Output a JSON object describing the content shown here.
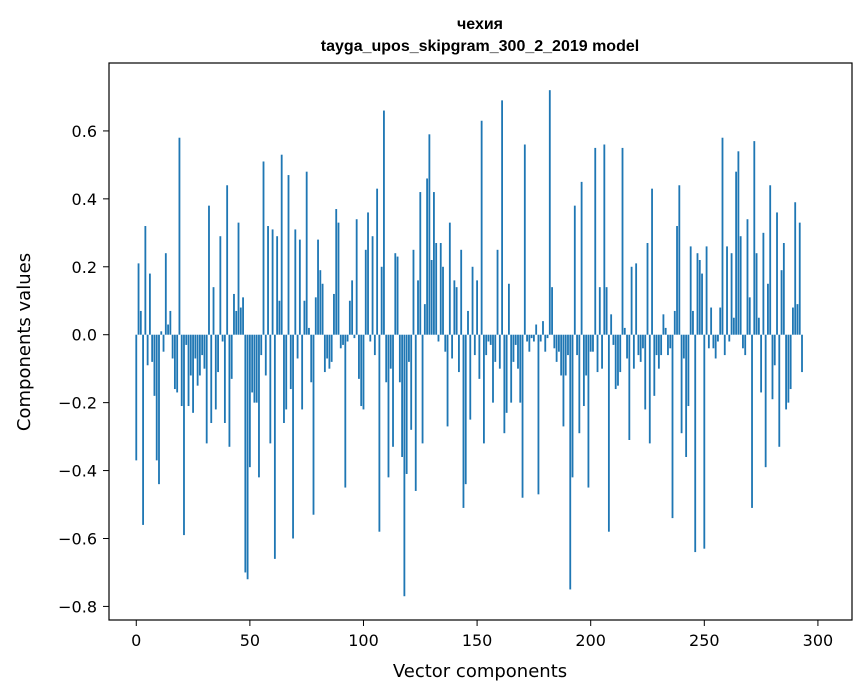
{
  "chart_data": {
    "type": "bar",
    "title": "чехия",
    "subtitle": "tayga_upos_skipgram_300_2_2019 model",
    "xlabel": "Vector components",
    "ylabel": "Components values",
    "xlim": [
      -12,
      315
    ],
    "ylim": [
      -0.84,
      0.8
    ],
    "x_ticks": [
      0,
      50,
      100,
      150,
      200,
      250,
      300
    ],
    "x_tick_labels": [
      "0",
      "50",
      "100",
      "150",
      "200",
      "250",
      "300"
    ],
    "y_ticks": [
      -0.8,
      -0.6,
      -0.4,
      -0.2,
      0.0,
      0.2,
      0.4,
      0.6
    ],
    "y_tick_labels": [
      "−0.8",
      "−0.6",
      "−0.4",
      "−0.2",
      "0.0",
      "0.2",
      "0.4",
      "0.6"
    ],
    "bar_color": "#1f77b4",
    "grid": false,
    "values": [
      -0.37,
      0.21,
      0.07,
      -0.56,
      0.32,
      -0.09,
      0.18,
      -0.08,
      -0.18,
      -0.37,
      -0.44,
      0.01,
      -0.05,
      0.24,
      0.03,
      0.07,
      -0.07,
      -0.16,
      -0.17,
      0.58,
      -0.21,
      -0.59,
      -0.03,
      -0.21,
      -0.12,
      -0.23,
      -0.07,
      -0.15,
      -0.12,
      -0.06,
      -0.1,
      -0.32,
      0.38,
      -0.26,
      0.14,
      -0.22,
      -0.11,
      0.29,
      -0.02,
      -0.26,
      0.44,
      -0.33,
      -0.13,
      0.12,
      0.07,
      0.33,
      0.08,
      0.11,
      -0.7,
      -0.72,
      -0.39,
      -0.17,
      -0.2,
      -0.2,
      -0.42,
      -0.06,
      0.51,
      -0.12,
      0.32,
      -0.32,
      0.31,
      -0.66,
      0.29,
      0.1,
      0.53,
      -0.26,
      -0.22,
      0.47,
      -0.16,
      -0.6,
      0.31,
      -0.07,
      0.28,
      -0.22,
      0.1,
      0.48,
      0.02,
      -0.14,
      -0.53,
      0.11,
      0.28,
      0.19,
      0.15,
      -0.11,
      -0.07,
      -0.1,
      -0.08,
      0.12,
      0.37,
      0.33,
      -0.04,
      -0.03,
      -0.45,
      -0.02,
      0.1,
      0.16,
      -0.01,
      0.34,
      -0.13,
      -0.21,
      -0.22,
      0.25,
      0.36,
      -0.02,
      0.29,
      -0.06,
      0.43,
      -0.58,
      0.2,
      0.66,
      -0.14,
      -0.42,
      -0.1,
      -0.33,
      0.24,
      0.23,
      -0.14,
      -0.36,
      -0.77,
      -0.41,
      -0.08,
      -0.28,
      0.25,
      -0.46,
      0.16,
      0.42,
      -0.32,
      0.09,
      0.46,
      0.59,
      0.22,
      0.42,
      0.27,
      -0.02,
      0.27,
      0.2,
      -0.05,
      -0.27,
      0.33,
      -0.07,
      0.16,
      0.14,
      -0.11,
      0.25,
      -0.51,
      -0.44,
      0.07,
      -0.25,
      0.2,
      -0.06,
      0.16,
      -0.13,
      0.63,
      -0.32,
      -0.06,
      -0.02,
      -0.03,
      -0.2,
      -0.08,
      0.25,
      -0.1,
      0.69,
      -0.29,
      -0.23,
      0.15,
      -0.2,
      -0.08,
      -0.03,
      -0.1,
      -0.2,
      -0.48,
      0.56,
      -0.02,
      -0.05,
      -0.01,
      -0.02,
      0.03,
      -0.47,
      -0.02,
      0.04,
      -0.05,
      -0.01,
      0.72,
      0.14,
      -0.04,
      -0.08,
      -0.05,
      -0.12,
      -0.27,
      -0.12,
      -0.06,
      -0.75,
      -0.42,
      0.38,
      -0.06,
      -0.29,
      0.45,
      -0.21,
      -0.12,
      -0.45,
      -0.05,
      -0.05,
      0.55,
      -0.11,
      0.14,
      -0.1,
      0.56,
      0.14,
      -0.58,
      0.06,
      -0.03,
      -0.16,
      -0.15,
      -0.11,
      0.55,
      0.02,
      -0.07,
      -0.31,
      0.2,
      -0.1,
      0.21,
      -0.06,
      -0.08,
      -0.04,
      -0.22,
      0.27,
      -0.32,
      0.43,
      -0.18,
      -0.06,
      -0.1,
      -0.06,
      0.06,
      0.02,
      -0.06,
      -0.04,
      -0.54,
      0.07,
      0.32,
      0.44,
      -0.29,
      -0.07,
      -0.36,
      -0.21,
      0.26,
      0.07,
      -0.64,
      0.24,
      0.22,
      0.18,
      -0.63,
      0.26,
      -0.04,
      0.08,
      -0.04,
      -0.07,
      -0.02,
      0.08,
      0.58,
      -0.06,
      0.26,
      -0.02,
      0.24,
      0.05,
      0.48,
      0.54,
      0.29,
      -0.04,
      -0.06,
      0.34,
      0.11,
      -0.51,
      0.57,
      0.24,
      0.05,
      -0.17,
      0.3,
      -0.39,
      0.15,
      0.44,
      -0.19,
      -0.09,
      0.36,
      -0.33,
      0.19,
      0.27,
      -0.22,
      -0.2,
      -0.16,
      0.08,
      0.39,
      0.09,
      0.33,
      -0.11
    ]
  }
}
